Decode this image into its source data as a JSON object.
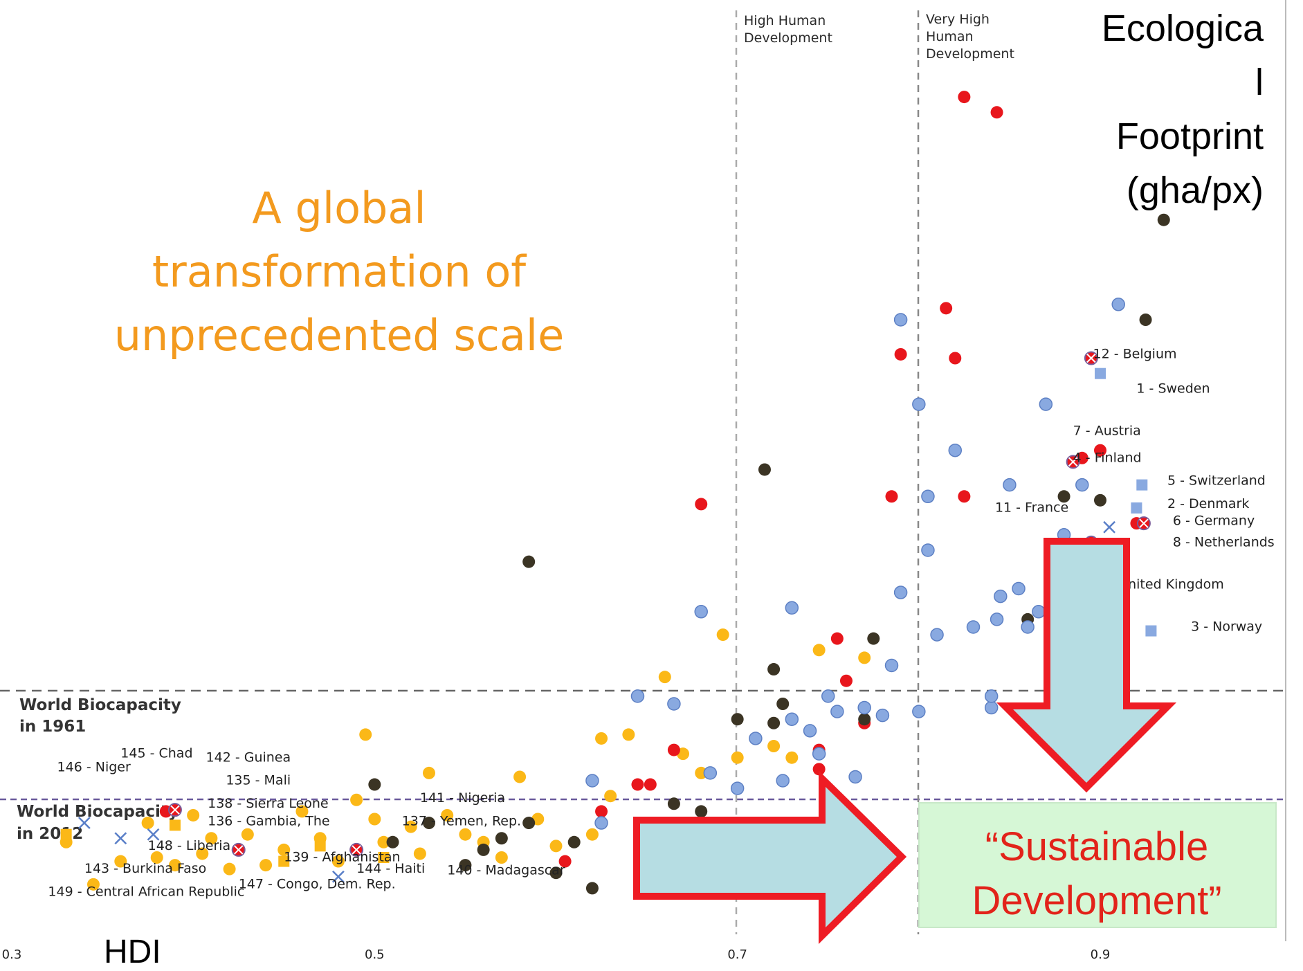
{
  "headline": {
    "line1": "A global",
    "line2": "transformation of",
    "line3": "unprecedented scale"
  },
  "axis": {
    "ylabel_lines": [
      "Ecologica",
      "l",
      "Footprint",
      "(gha/px)"
    ],
    "xlabel": "HDI",
    "x_ticks": [
      "0.3",
      "0.5",
      "0.7",
      "0.9"
    ]
  },
  "zones": {
    "high": [
      "High Human",
      "Development"
    ],
    "very_high": [
      "Very High",
      "Human",
      "Development"
    ]
  },
  "biocapacity": {
    "y1961": [
      "World Biocapacity",
      "in 1961"
    ],
    "y2012": [
      "World Biocapacity",
      "in 2012"
    ]
  },
  "sustainable_development": [
    "“Sustainable",
    "Development”"
  ],
  "colors": {
    "orange_dot": "#fbb817",
    "red_dot": "#e8161c",
    "dark_dot": "#3b3424",
    "blue_dot": "#89a9e0",
    "headline": "#f39a1e",
    "arrow_fill": "#b6dde3",
    "arrow_stroke": "#ee1c24",
    "sd_box": "#d6f7d6"
  },
  "chart_data": {
    "type": "scatter",
    "xlim": [
      0.3,
      1.0
    ],
    "x_ticks": [
      0.3,
      0.5,
      0.7,
      0.9
    ],
    "vlines": [
      0.7,
      0.8
    ],
    "annotations": [
      {
        "text": "12 - Belgium",
        "x": 0.896,
        "y": 7.5
      },
      {
        "text": "1 - Sweden",
        "x": 0.92,
        "y": 7.05
      },
      {
        "text": "7 - Austria",
        "x": 0.885,
        "y": 6.5
      },
      {
        "text": "4 - Finland",
        "x": 0.885,
        "y": 6.15
      },
      {
        "text": "5 - Switzerland",
        "x": 0.937,
        "y": 5.85
      },
      {
        "text": "2 - Denmark",
        "x": 0.937,
        "y": 5.55
      },
      {
        "text": "11 - France",
        "x": 0.842,
        "y": 5.5
      },
      {
        "text": "6 - Germany",
        "x": 0.94,
        "y": 5.33
      },
      {
        "text": "8 - Netherlands",
        "x": 0.94,
        "y": 5.05
      },
      {
        "text": "United Kingdom",
        "x": 0.91,
        "y": 4.5
      },
      {
        "text": "3 - Norway",
        "x": 0.95,
        "y": 3.95
      },
      {
        "text": "145 - Chad",
        "x": 0.36,
        "y": 2.3
      },
      {
        "text": "142 - Guinea",
        "x": 0.407,
        "y": 2.25
      },
      {
        "text": "146 - Niger",
        "x": 0.325,
        "y": 2.12
      },
      {
        "text": "135 - Mali",
        "x": 0.418,
        "y": 1.95
      },
      {
        "text": "141 - Nigeria",
        "x": 0.525,
        "y": 1.72
      },
      {
        "text": "138 - Sierra Leone",
        "x": 0.408,
        "y": 1.65
      },
      {
        "text": "136 - Gambia, The",
        "x": 0.408,
        "y": 1.42
      },
      {
        "text": "137 - Yemen, Rep.",
        "x": 0.515,
        "y": 1.42
      },
      {
        "text": "148 - Liberia",
        "x": 0.375,
        "y": 1.1
      },
      {
        "text": "139 - Afghanistan",
        "x": 0.45,
        "y": 0.95
      },
      {
        "text": "143 - Burkina Faso",
        "x": 0.34,
        "y": 0.8
      },
      {
        "text": "144 - Haiti",
        "x": 0.49,
        "y": 0.8
      },
      {
        "text": "140 - Madagascar",
        "x": 0.54,
        "y": 0.78
      },
      {
        "text": "149 - Central African Republic",
        "x": 0.32,
        "y": 0.5
      },
      {
        "text": "147 - Congo, Dem. Rep.",
        "x": 0.425,
        "y": 0.6
      }
    ],
    "series": [
      {
        "color": "#fbb817",
        "marker": "circle",
        "points": [
          [
            0.33,
            1.2
          ],
          [
            0.345,
            0.65
          ],
          [
            0.36,
            0.95
          ],
          [
            0.375,
            1.45
          ],
          [
            0.38,
            1.0
          ],
          [
            0.39,
            0.9
          ],
          [
            0.4,
            1.55
          ],
          [
            0.405,
            1.05
          ],
          [
            0.41,
            1.25
          ],
          [
            0.42,
            0.85
          ],
          [
            0.43,
            1.3
          ],
          [
            0.44,
            0.9
          ],
          [
            0.45,
            1.1
          ],
          [
            0.46,
            1.6
          ],
          [
            0.47,
            1.25
          ],
          [
            0.48,
            0.95
          ],
          [
            0.49,
            1.75
          ],
          [
            0.495,
            2.6
          ],
          [
            0.5,
            1.5
          ],
          [
            0.505,
            1.2
          ],
          [
            0.52,
            1.4
          ],
          [
            0.525,
            1.05
          ],
          [
            0.53,
            2.1
          ],
          [
            0.54,
            1.55
          ],
          [
            0.55,
            1.3
          ],
          [
            0.56,
            1.2
          ],
          [
            0.57,
            1.0
          ],
          [
            0.58,
            2.05
          ],
          [
            0.59,
            1.5
          ],
          [
            0.6,
            1.15
          ],
          [
            0.62,
            1.3
          ],
          [
            0.625,
            2.55
          ],
          [
            0.63,
            1.8
          ],
          [
            0.64,
            2.6
          ],
          [
            0.66,
            3.35
          ],
          [
            0.67,
            2.35
          ],
          [
            0.68,
            2.1
          ],
          [
            0.7,
            2.3
          ],
          [
            0.692,
            3.9
          ],
          [
            0.72,
            2.45
          ],
          [
            0.73,
            2.3
          ],
          [
            0.745,
            3.7
          ],
          [
            0.77,
            3.6
          ]
        ]
      },
      {
        "color": "#e8161c",
        "marker": "circle",
        "points": [
          [
            0.385,
            1.6
          ],
          [
            0.425,
            1.1
          ],
          [
            0.49,
            1.1
          ],
          [
            0.605,
            0.95
          ],
          [
            0.625,
            1.6
          ],
          [
            0.645,
            1.95
          ],
          [
            0.652,
            1.95
          ],
          [
            0.665,
            2.4
          ],
          [
            0.68,
            5.6
          ],
          [
            0.745,
            2.4
          ],
          [
            0.745,
            2.15
          ],
          [
            0.755,
            3.85
          ],
          [
            0.77,
            2.75
          ],
          [
            0.76,
            3.3
          ],
          [
            0.785,
            5.7
          ],
          [
            0.79,
            7.55
          ],
          [
            0.815,
            8.15
          ],
          [
            0.82,
            7.5
          ],
          [
            0.825,
            5.7
          ],
          [
            0.825,
            10.9
          ],
          [
            0.843,
            10.7
          ],
          [
            0.89,
            6.2
          ],
          [
            0.89,
            5.05
          ],
          [
            0.9,
            6.3
          ],
          [
            0.92,
            5.35
          ]
        ]
      },
      {
        "color": "#3b3424",
        "marker": "circle",
        "points": [
          [
            0.5,
            1.95
          ],
          [
            0.51,
            1.2
          ],
          [
            0.53,
            1.45
          ],
          [
            0.55,
            0.9
          ],
          [
            0.56,
            1.1
          ],
          [
            0.57,
            1.25
          ],
          [
            0.585,
            1.45
          ],
          [
            0.6,
            0.8
          ],
          [
            0.61,
            1.2
          ],
          [
            0.62,
            0.6
          ],
          [
            0.585,
            4.85
          ],
          [
            0.665,
            1.7
          ],
          [
            0.68,
            1.6
          ],
          [
            0.7,
            2.8
          ],
          [
            0.715,
            6.05
          ],
          [
            0.72,
            2.75
          ],
          [
            0.72,
            3.45
          ],
          [
            0.725,
            3.0
          ],
          [
            0.77,
            2.8
          ],
          [
            0.775,
            3.85
          ],
          [
            0.86,
            4.1
          ],
          [
            0.88,
            5.7
          ],
          [
            0.9,
            5.65
          ],
          [
            0.925,
            8.0
          ],
          [
            0.935,
            9.3
          ]
        ]
      },
      {
        "color": "#89a9e0",
        "marker": "circle",
        "points": [
          [
            0.62,
            2.0
          ],
          [
            0.625,
            1.45
          ],
          [
            0.645,
            3.1
          ],
          [
            0.665,
            3.0
          ],
          [
            0.68,
            4.2
          ],
          [
            0.685,
            2.1
          ],
          [
            0.7,
            1.9
          ],
          [
            0.71,
            2.55
          ],
          [
            0.725,
            2.0
          ],
          [
            0.73,
            4.25
          ],
          [
            0.73,
            2.8
          ],
          [
            0.74,
            2.65
          ],
          [
            0.745,
            2.35
          ],
          [
            0.75,
            3.1
          ],
          [
            0.755,
            2.9
          ],
          [
            0.765,
            2.05
          ],
          [
            0.77,
            2.95
          ],
          [
            0.78,
            2.85
          ],
          [
            0.785,
            3.5
          ],
          [
            0.79,
            4.45
          ],
          [
            0.79,
            8.0
          ],
          [
            0.8,
            6.9
          ],
          [
            0.8,
            2.9
          ],
          [
            0.805,
            5.7
          ],
          [
            0.805,
            5.0
          ],
          [
            0.81,
            3.9
          ],
          [
            0.82,
            6.3
          ],
          [
            0.83,
            4.0
          ],
          [
            0.84,
            2.95
          ],
          [
            0.84,
            3.1
          ],
          [
            0.843,
            4.1
          ],
          [
            0.845,
            4.4
          ],
          [
            0.85,
            5.85
          ],
          [
            0.855,
            4.5
          ],
          [
            0.86,
            4.0
          ],
          [
            0.866,
            4.2
          ],
          [
            0.87,
            6.9
          ],
          [
            0.875,
            4.4
          ],
          [
            0.88,
            5.2
          ],
          [
            0.885,
            4.8
          ],
          [
            0.89,
            5.85
          ],
          [
            0.91,
            8.2
          ]
        ]
      },
      {
        "color": "#89a9e0",
        "marker": "square",
        "points": [
          [
            0.9,
            7.3
          ],
          [
            0.923,
            5.85
          ],
          [
            0.92,
            5.55
          ],
          [
            0.928,
            3.95
          ]
        ]
      },
      {
        "color": "#fbb817",
        "marker": "square",
        "points": [
          [
            0.33,
            1.3
          ],
          [
            0.39,
            1.42
          ],
          [
            0.45,
            0.95
          ],
          [
            0.505,
            1.0
          ],
          [
            0.47,
            1.15
          ]
        ]
      },
      {
        "color": "#e8161c",
        "marker": "crossed-circle",
        "points": [
          [
            0.39,
            1.62
          ],
          [
            0.425,
            1.1
          ],
          [
            0.49,
            1.1
          ],
          [
            0.895,
            7.5
          ],
          [
            0.885,
            6.15
          ],
          [
            0.895,
            5.1
          ],
          [
            0.924,
            5.35
          ]
        ]
      },
      {
        "color": "#5a7fc8",
        "marker": "x",
        "points": [
          [
            0.34,
            1.45
          ],
          [
            0.36,
            1.25
          ],
          [
            0.378,
            1.3
          ],
          [
            0.48,
            0.75
          ],
          [
            0.905,
            5.3
          ]
        ]
      }
    ]
  }
}
